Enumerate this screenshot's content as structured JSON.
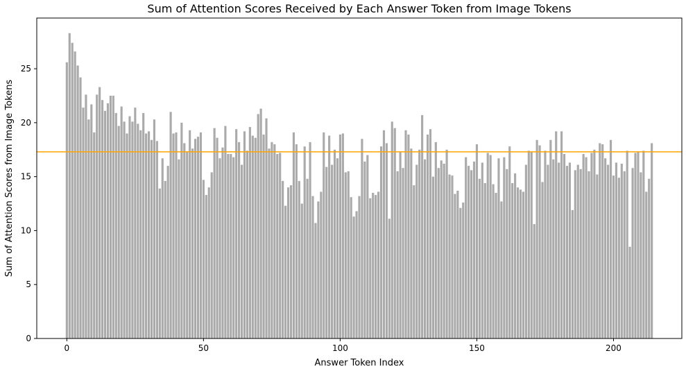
{
  "chart_data": {
    "type": "bar",
    "title": "Sum of Attention Scores Received by Each Answer Token from Image Tokens",
    "xlabel": "Answer Token Index",
    "ylabel": "Sum of Attention Scores from Image Tokens",
    "x": [
      0,
      1,
      2,
      3,
      4,
      5,
      6,
      7,
      8,
      9,
      10,
      11,
      12,
      13,
      14,
      15,
      16,
      17,
      18,
      19,
      20,
      21,
      22,
      23,
      24,
      25,
      26,
      27,
      28,
      29,
      30,
      31,
      32,
      33,
      34,
      35,
      36,
      37,
      38,
      39,
      40,
      41,
      42,
      43,
      44,
      45,
      46,
      47,
      48,
      49,
      50,
      51,
      52,
      53,
      54,
      55,
      56,
      57,
      58,
      59,
      60,
      61,
      62,
      63,
      64,
      65,
      66,
      67,
      68,
      69,
      70,
      71,
      72,
      73,
      74,
      75,
      76,
      77,
      78,
      79,
      80,
      81,
      82,
      83,
      84,
      85,
      86,
      87,
      88,
      89,
      90,
      91,
      92,
      93,
      94,
      95,
      96,
      97,
      98,
      99,
      100,
      101,
      102,
      103,
      104,
      105,
      106,
      107,
      108,
      109,
      110,
      111,
      112,
      113,
      114,
      115,
      116,
      117,
      118,
      119,
      120,
      121,
      122,
      123,
      124,
      125,
      126,
      127,
      128,
      129,
      130,
      131,
      132,
      133,
      134,
      135,
      136,
      137,
      138,
      139,
      140,
      141,
      142,
      143,
      144,
      145,
      146,
      147,
      148,
      149,
      150,
      151,
      152,
      153,
      154,
      155,
      156,
      157,
      158,
      159,
      160,
      161,
      162,
      163,
      164,
      165,
      166,
      167,
      168,
      169,
      170,
      171,
      172,
      173,
      174,
      175,
      176,
      177,
      178,
      179,
      180,
      181,
      182,
      183,
      184,
      185,
      186,
      187,
      188,
      189,
      190,
      191,
      192,
      193,
      194,
      195,
      196,
      197,
      198,
      199,
      200,
      201,
      202,
      203,
      204,
      205,
      206,
      207,
      208,
      209,
      210,
      211,
      212,
      213,
      214
    ],
    "values": [
      25.6,
      28.3,
      27.4,
      26.6,
      25.3,
      24.2,
      21.4,
      22.6,
      20.3,
      21.7,
      19.1,
      22.6,
      23.3,
      22.1,
      21.1,
      21.8,
      22.5,
      22.5,
      20.9,
      19.7,
      21.5,
      20.1,
      19.0,
      20.6,
      20.1,
      21.4,
      19.9,
      19.3,
      20.9,
      19.0,
      19.2,
      18.4,
      20.3,
      18.3,
      13.9,
      16.7,
      14.6,
      16.0,
      21.0,
      19.0,
      19.1,
      16.6,
      20.0,
      18.1,
      17.3,
      19.3,
      17.6,
      18.5,
      18.7,
      19.1,
      14.7,
      13.3,
      14.0,
      15.4,
      19.5,
      18.6,
      16.7,
      17.7,
      19.7,
      17.1,
      17.1,
      16.8,
      19.4,
      18.2,
      16.1,
      19.2,
      17.4,
      19.6,
      18.8,
      18.6,
      20.8,
      21.3,
      18.9,
      20.4,
      17.6,
      18.2,
      18.0,
      17.1,
      17.2,
      14.6,
      12.3,
      14.0,
      14.2,
      19.1,
      18.0,
      14.6,
      12.5,
      17.8,
      14.8,
      18.2,
      13.2,
      10.7,
      12.7,
      13.6,
      19.1,
      15.9,
      18.8,
      16.1,
      17.5,
      16.7,
      18.9,
      19.0,
      15.4,
      15.5,
      13.1,
      11.3,
      11.8,
      13.2,
      18.5,
      16.4,
      17.0,
      13.0,
      13.5,
      13.3,
      13.6,
      17.8,
      19.3,
      18.1,
      11.1,
      20.1,
      19.5,
      15.5,
      17.3,
      15.8,
      19.3,
      18.9,
      17.6,
      14.2,
      16.1,
      17.5,
      20.7,
      16.6,
      18.9,
      19.4,
      15.0,
      18.2,
      15.8,
      16.5,
      16.2,
      17.5,
      15.2,
      15.1,
      13.4,
      13.7,
      12.1,
      12.6,
      16.8,
      16.0,
      15.6,
      16.4,
      18.0,
      14.8,
      16.3,
      14.4,
      17.2,
      17.0,
      14.3,
      13.5,
      16.7,
      12.7,
      16.8,
      15.7,
      17.8,
      14.4,
      15.3,
      14.0,
      13.8,
      13.6,
      16.1,
      17.4,
      17.3,
      10.6,
      18.4,
      17.9,
      14.5,
      17.4,
      16.1,
      18.4,
      16.6,
      19.2,
      16.3,
      19.2,
      17.1,
      16.0,
      16.3,
      11.9,
      15.6,
      16.1,
      15.7,
      17.1,
      16.8,
      15.5,
      17.2,
      17.5,
      15.2,
      18.1,
      18.0,
      16.7,
      16.1,
      18.4,
      15.1,
      16.3,
      14.9,
      16.2,
      15.5,
      17.4,
      8.5,
      15.8,
      17.2,
      17.3,
      15.4,
      17.4,
      13.6,
      14.8,
      18.1
    ],
    "hline": {
      "y": 17.3,
      "color": "#ffa500"
    },
    "bar_color": "#aaaaaa",
    "xlim": [
      -11,
      225
    ],
    "ylim": [
      0,
      29.7
    ],
    "xticks": [
      0,
      50,
      100,
      150,
      200
    ],
    "yticks": [
      0,
      5,
      10,
      15,
      20,
      25
    ],
    "grid": false,
    "legend": "none"
  }
}
